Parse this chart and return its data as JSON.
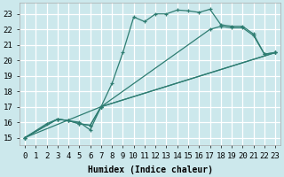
{
  "xlabel": "Humidex (Indice chaleur)",
  "bg_color": "#cce8ec",
  "grid_color": "#ffffff",
  "line_color": "#2e7d72",
  "xlim": [
    -0.5,
    23.5
  ],
  "ylim": [
    14.5,
    23.7
  ],
  "xticks": [
    0,
    1,
    2,
    3,
    4,
    5,
    6,
    7,
    8,
    9,
    10,
    11,
    12,
    13,
    14,
    15,
    16,
    17,
    18,
    19,
    20,
    21,
    22,
    23
  ],
  "yticks": [
    15,
    16,
    17,
    18,
    19,
    20,
    21,
    22,
    23
  ],
  "curve1_x": [
    0,
    2,
    3,
    4,
    5,
    6,
    7,
    8,
    9,
    10,
    11,
    12,
    13,
    14,
    15,
    16,
    17,
    18,
    19,
    20,
    21,
    22,
    23
  ],
  "curve1_y": [
    15.0,
    15.9,
    16.2,
    16.1,
    16.0,
    15.5,
    17.0,
    18.5,
    20.5,
    22.8,
    22.5,
    23.0,
    23.0,
    23.25,
    23.2,
    23.1,
    23.3,
    22.3,
    22.2,
    22.2,
    21.7,
    20.4,
    20.5
  ],
  "curve2_x": [
    0,
    3,
    4,
    5,
    6,
    7,
    17,
    18,
    19,
    20,
    21,
    22,
    23
  ],
  "curve2_y": [
    15.0,
    16.2,
    16.1,
    15.9,
    15.8,
    17.0,
    22.0,
    22.2,
    22.1,
    22.1,
    21.6,
    20.4,
    20.5
  ],
  "curve3_x": [
    0,
    3,
    4,
    5,
    6,
    7,
    23
  ],
  "curve3_y": [
    15.0,
    16.2,
    16.1,
    15.9,
    15.8,
    17.0,
    20.5
  ],
  "curve4_x": [
    0,
    7,
    23
  ],
  "curve4_y": [
    15.0,
    17.0,
    20.5
  ]
}
